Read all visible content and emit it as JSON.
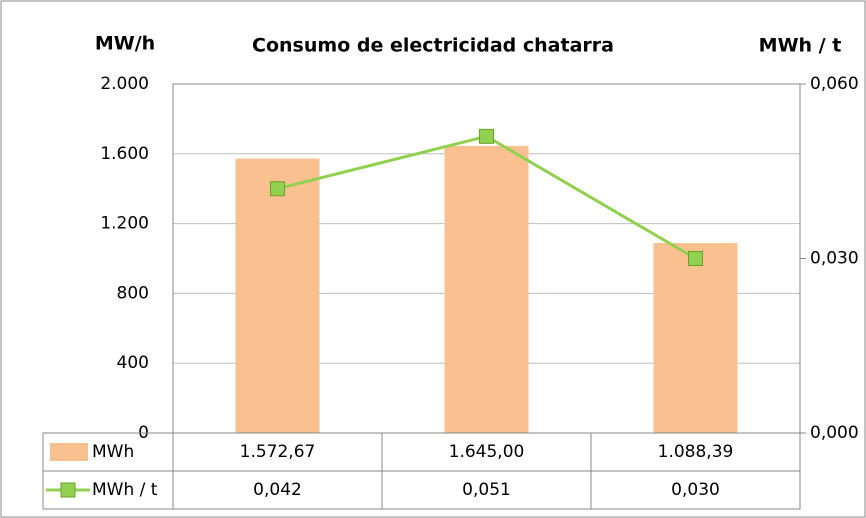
{
  "chart_data": {
    "type": "bar_line",
    "title": "Consumo de electricidad chatarra",
    "y_label": "MW/h",
    "y2_label": "MWh / t",
    "series": [
      {
        "name": "MWh",
        "type": "bar",
        "color": "#fac090",
        "values": [
          1572.67,
          1645.0,
          1088.39
        ],
        "value_labels": [
          "1.572,67",
          "1.645,00",
          "1.088,39"
        ]
      },
      {
        "name": "MWh / t",
        "type": "line",
        "axis": "y2",
        "color": "#92d050",
        "values": [
          0.042,
          0.051,
          0.03
        ],
        "value_labels": [
          "0,042",
          "0,051",
          "0,030"
        ]
      }
    ],
    "ylim": [
      0,
      2000
    ],
    "yticks": [
      0,
      400,
      800,
      {
        "value": 1200,
        "label": "1.200"
      },
      {
        "value": 1600,
        "label": "1.600"
      },
      {
        "value": 2000,
        "label": "2.000"
      }
    ],
    "y2lim": [
      0,
      0.06
    ],
    "y2ticks": [
      {
        "value": 0,
        "label": "0,000"
      },
      {
        "value": 0.03,
        "label": "0,030"
      },
      {
        "value": 0.06,
        "label": "0,060"
      }
    ],
    "grid": true,
    "data_table": true
  }
}
